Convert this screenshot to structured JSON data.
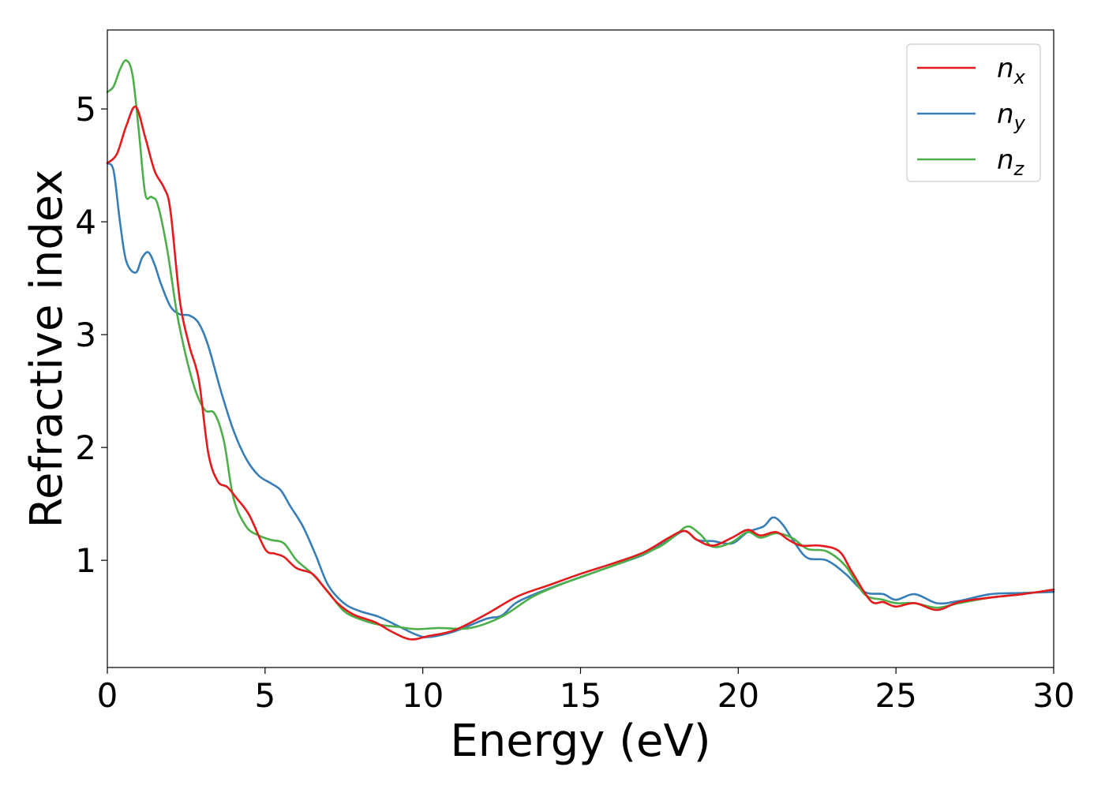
{
  "chart_data": {
    "type": "line",
    "xlabel": "Energy (eV)",
    "ylabel": "Refractive index",
    "xlim": [
      0,
      30
    ],
    "ylim": [
      0.05,
      5.7
    ],
    "xticks": [
      0,
      5,
      10,
      15,
      20,
      25,
      30
    ],
    "yticks": [
      1,
      2,
      3,
      4,
      5
    ],
    "grid": false,
    "legend_position": "top-right",
    "series": [
      {
        "name": "n_x",
        "label_main": "n",
        "label_sub": "x",
        "color": "#e41a1c",
        "x": [
          0,
          0.3,
          0.6,
          0.9,
          1.2,
          1.5,
          1.8,
          2.0,
          2.3,
          2.6,
          2.9,
          3.2,
          3.5,
          3.8,
          4.1,
          4.5,
          5.0,
          5.3,
          5.6,
          6.0,
          6.5,
          6.9,
          7.3,
          7.8,
          8.5,
          9.0,
          9.6,
          10.2,
          11.0,
          12.0,
          13.0,
          14.0,
          15.0,
          16.0,
          17.0,
          17.8,
          18.3,
          18.7,
          19.2,
          19.8,
          20.3,
          20.7,
          21.2,
          21.6,
          22.0,
          22.6,
          23.2,
          23.6,
          24.2,
          24.6,
          25.0,
          25.6,
          26.3,
          27.0,
          28.0,
          29.0,
          30.0
        ],
        "y": [
          4.52,
          4.6,
          4.85,
          5.02,
          4.75,
          4.45,
          4.3,
          4.1,
          3.3,
          2.9,
          2.6,
          1.95,
          1.7,
          1.65,
          1.55,
          1.4,
          1.1,
          1.06,
          1.03,
          0.93,
          0.88,
          0.75,
          0.62,
          0.52,
          0.45,
          0.37,
          0.3,
          0.33,
          0.38,
          0.52,
          0.68,
          0.78,
          0.88,
          0.97,
          1.07,
          1.2,
          1.26,
          1.18,
          1.13,
          1.2,
          1.27,
          1.22,
          1.25,
          1.18,
          1.13,
          1.13,
          1.08,
          0.9,
          0.64,
          0.63,
          0.59,
          0.62,
          0.56,
          0.63,
          0.67,
          0.7,
          0.74
        ]
      },
      {
        "name": "n_y",
        "label_main": "n",
        "label_sub": "y",
        "color": "#377eb8",
        "x": [
          0,
          0.2,
          0.4,
          0.6,
          0.9,
          1.1,
          1.3,
          1.5,
          1.7,
          2.0,
          2.3,
          2.6,
          2.9,
          3.2,
          3.6,
          4.0,
          4.4,
          4.8,
          5.2,
          5.5,
          5.8,
          6.2,
          6.6,
          7.0,
          7.5,
          8.0,
          8.6,
          9.2,
          9.8,
          10.2,
          11.0,
          12.0,
          12.5,
          13.0,
          14.0,
          15.0,
          16.0,
          17.0,
          17.8,
          18.3,
          18.7,
          19.2,
          19.8,
          20.3,
          20.8,
          21.1,
          21.4,
          21.8,
          22.2,
          22.8,
          23.4,
          24.0,
          24.6,
          25.0,
          25.6,
          26.3,
          27.0,
          28.0,
          29.0,
          30.0
        ],
        "y": [
          4.52,
          4.45,
          4.0,
          3.65,
          3.55,
          3.68,
          3.73,
          3.62,
          3.45,
          3.25,
          3.18,
          3.17,
          3.1,
          2.9,
          2.5,
          2.15,
          1.9,
          1.75,
          1.68,
          1.62,
          1.48,
          1.3,
          1.05,
          0.78,
          0.62,
          0.55,
          0.5,
          0.42,
          0.34,
          0.32,
          0.37,
          0.48,
          0.51,
          0.63,
          0.75,
          0.85,
          0.95,
          1.05,
          1.18,
          1.26,
          1.18,
          1.17,
          1.15,
          1.25,
          1.3,
          1.38,
          1.32,
          1.15,
          1.02,
          1.0,
          0.88,
          0.72,
          0.7,
          0.65,
          0.7,
          0.62,
          0.64,
          0.7,
          0.71,
          0.72
        ]
      },
      {
        "name": "n_z",
        "label_main": "n",
        "label_sub": "z",
        "color": "#4daf4a",
        "x": [
          0,
          0.2,
          0.4,
          0.6,
          0.8,
          1.0,
          1.2,
          1.4,
          1.6,
          1.9,
          2.2,
          2.5,
          2.8,
          3.1,
          3.4,
          3.7,
          4.0,
          4.4,
          4.8,
          5.2,
          5.6,
          6.0,
          6.5,
          7.0,
          7.5,
          8.0,
          8.6,
          9.2,
          9.8,
          10.5,
          11.5,
          12.5,
          13.5,
          14.5,
          15.5,
          16.5,
          17.5,
          18.0,
          18.4,
          18.8,
          19.2,
          19.8,
          20.3,
          20.7,
          21.2,
          21.7,
          22.2,
          22.8,
          23.4,
          24.0,
          24.6,
          25.0,
          25.6,
          26.3,
          27.0,
          28.0,
          29.0,
          30.0
        ],
        "y": [
          5.15,
          5.2,
          5.35,
          5.43,
          5.3,
          4.8,
          4.25,
          4.22,
          4.15,
          3.75,
          3.2,
          2.8,
          2.5,
          2.33,
          2.3,
          2.05,
          1.55,
          1.3,
          1.22,
          1.18,
          1.15,
          1.0,
          0.88,
          0.72,
          0.55,
          0.48,
          0.43,
          0.41,
          0.39,
          0.4,
          0.4,
          0.5,
          0.68,
          0.8,
          0.9,
          1.0,
          1.12,
          1.22,
          1.3,
          1.23,
          1.12,
          1.16,
          1.25,
          1.2,
          1.24,
          1.2,
          1.1,
          1.08,
          0.95,
          0.7,
          0.65,
          0.62,
          0.62,
          0.58,
          0.62,
          0.67,
          0.7,
          0.74
        ]
      }
    ]
  }
}
